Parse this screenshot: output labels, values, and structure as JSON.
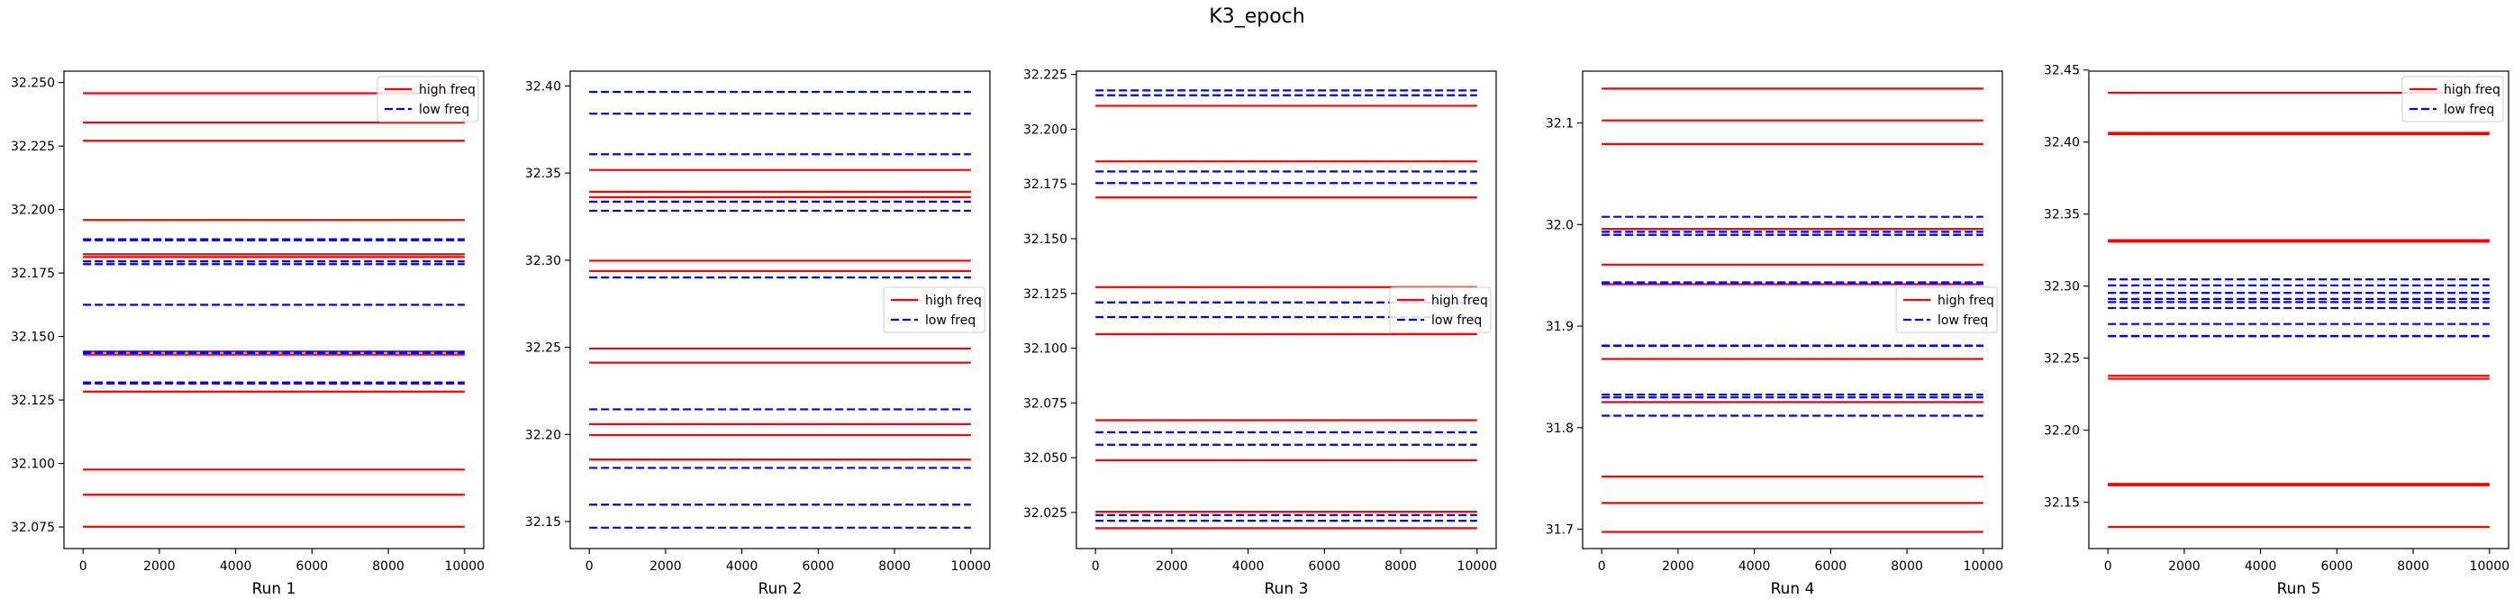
{
  "figure": {
    "title": "K3_epoch"
  },
  "chart_data": [
    {
      "type": "line",
      "xlabel": "Run 1",
      "xlim": [
        -500,
        10500
      ],
      "ylim": [
        32.0665,
        32.2545
      ],
      "xticks": [
        0,
        2000,
        4000,
        6000,
        8000,
        10000
      ],
      "yticks": [
        32.075,
        32.1,
        32.125,
        32.15,
        32.175,
        32.2,
        32.225,
        32.25
      ],
      "ytick_decimals": 3,
      "legend": "top-right",
      "series": [
        {
          "name": "high freq",
          "color": "#ff0000",
          "style": "solid",
          "x": [
            0,
            10000
          ],
          "levels": [
            32.2458,
            32.2343,
            32.2271,
            32.1959,
            32.1824,
            32.1813,
            32.1441,
            32.1429,
            32.1283,
            32.0976,
            32.0877,
            32.0751
          ]
        },
        {
          "name": "low freq",
          "color": "#0000ff",
          "style": "dashed",
          "x": [
            0,
            10000
          ],
          "levels": [
            32.1883,
            32.1879,
            32.1796,
            32.1785,
            32.1625,
            32.1439,
            32.1435,
            32.1319,
            32.1315
          ]
        }
      ]
    },
    {
      "type": "line",
      "xlabel": "Run 2",
      "xlim": [
        -500,
        10500
      ],
      "ylim": [
        32.1345,
        32.4085
      ],
      "xticks": [
        0,
        2000,
        4000,
        6000,
        8000,
        10000
      ],
      "yticks": [
        32.15,
        32.2,
        32.25,
        32.3,
        32.35,
        32.4
      ],
      "ytick_decimals": 2,
      "legend": "center-right",
      "series": [
        {
          "name": "high freq",
          "color": "#ff0000",
          "style": "solid",
          "x": [
            0,
            10000
          ],
          "levels": [
            32.3518,
            32.3393,
            32.3362,
            32.2997,
            32.2938,
            32.2493,
            32.2412,
            32.2059,
            32.1996,
            32.1856
          ]
        },
        {
          "name": "low freq",
          "color": "#0000ff",
          "style": "dashed",
          "x": [
            0,
            10000
          ],
          "levels": [
            32.3966,
            32.3841,
            32.3608,
            32.3336,
            32.3284,
            32.2901,
            32.2144,
            32.1808,
            32.1597,
            32.1465
          ]
        }
      ]
    },
    {
      "type": "line",
      "xlabel": "Run 3",
      "xlim": [
        -500,
        10500
      ],
      "ylim": [
        32.0085,
        32.2265
      ],
      "xticks": [
        0,
        2000,
        4000,
        6000,
        8000,
        10000
      ],
      "yticks": [
        32.025,
        32.05,
        32.075,
        32.1,
        32.125,
        32.15,
        32.175,
        32.2,
        32.225
      ],
      "ytick_decimals": 3,
      "legend": "center-right",
      "series": [
        {
          "name": "high freq",
          "color": "#ff0000",
          "style": "solid",
          "x": [
            0,
            10000
          ],
          "levels": [
            32.2107,
            32.1853,
            32.1688,
            32.1279,
            32.1064,
            32.0671,
            32.0488,
            32.0253,
            32.0178
          ]
        },
        {
          "name": "low freq",
          "color": "#0000ff",
          "style": "dashed",
          "x": [
            0,
            10000
          ],
          "levels": [
            32.2177,
            32.2155,
            32.1807,
            32.1754,
            32.1209,
            32.1142,
            32.0616,
            32.0559,
            32.0238,
            32.0212
          ]
        }
      ]
    },
    {
      "type": "line",
      "xlabel": "Run 4",
      "xlim": [
        -500,
        10500
      ],
      "ylim": [
        31.681,
        32.151
      ],
      "xticks": [
        0,
        2000,
        4000,
        6000,
        8000,
        10000
      ],
      "yticks": [
        31.7,
        31.8,
        31.9,
        32.0,
        32.1
      ],
      "ytick_decimals": 1,
      "legend": "center-right",
      "series": [
        {
          "name": "high freq",
          "color": "#ff0000",
          "style": "solid",
          "x": [
            0,
            10000
          ],
          "levels": [
            32.1338,
            32.1025,
            32.0793,
            31.9957,
            31.9605,
            31.9413,
            31.8677,
            31.8252,
            31.7518,
            31.7259,
            31.6974
          ]
        },
        {
          "name": "low freq",
          "color": "#0000ff",
          "style": "dashed",
          "x": [
            0,
            10000
          ],
          "levels": [
            32.0076,
            31.9928,
            31.9898,
            31.9431,
            31.9423,
            31.8809,
            31.8805,
            31.8325,
            31.8298,
            31.8118
          ]
        }
      ]
    },
    {
      "type": "line",
      "xlabel": "Run 5",
      "xlim": [
        -500,
        10500
      ],
      "ylim": [
        32.1178,
        32.4492
      ],
      "xticks": [
        0,
        2000,
        4000,
        6000,
        8000,
        10000
      ],
      "yticks": [
        32.15,
        32.2,
        32.25,
        32.3,
        32.35,
        32.4,
        32.45
      ],
      "ytick_decimals": 2,
      "legend": "top-right",
      "series": [
        {
          "name": "high freq",
          "color": "#ff0000",
          "style": "solid",
          "x": [
            0,
            10000
          ],
          "levels": [
            32.4342,
            32.4064,
            32.4054,
            32.3319,
            32.3309,
            32.2377,
            32.2357,
            32.1627,
            32.1617,
            32.1328
          ]
        },
        {
          "name": "low freq",
          "color": "#0000ff",
          "style": "dashed",
          "x": [
            0,
            10000
          ],
          "levels": [
            32.3047,
            32.3005,
            32.2953,
            32.2911,
            32.2889,
            32.2848,
            32.2737,
            32.2654,
            32.2652
          ]
        }
      ]
    }
  ]
}
